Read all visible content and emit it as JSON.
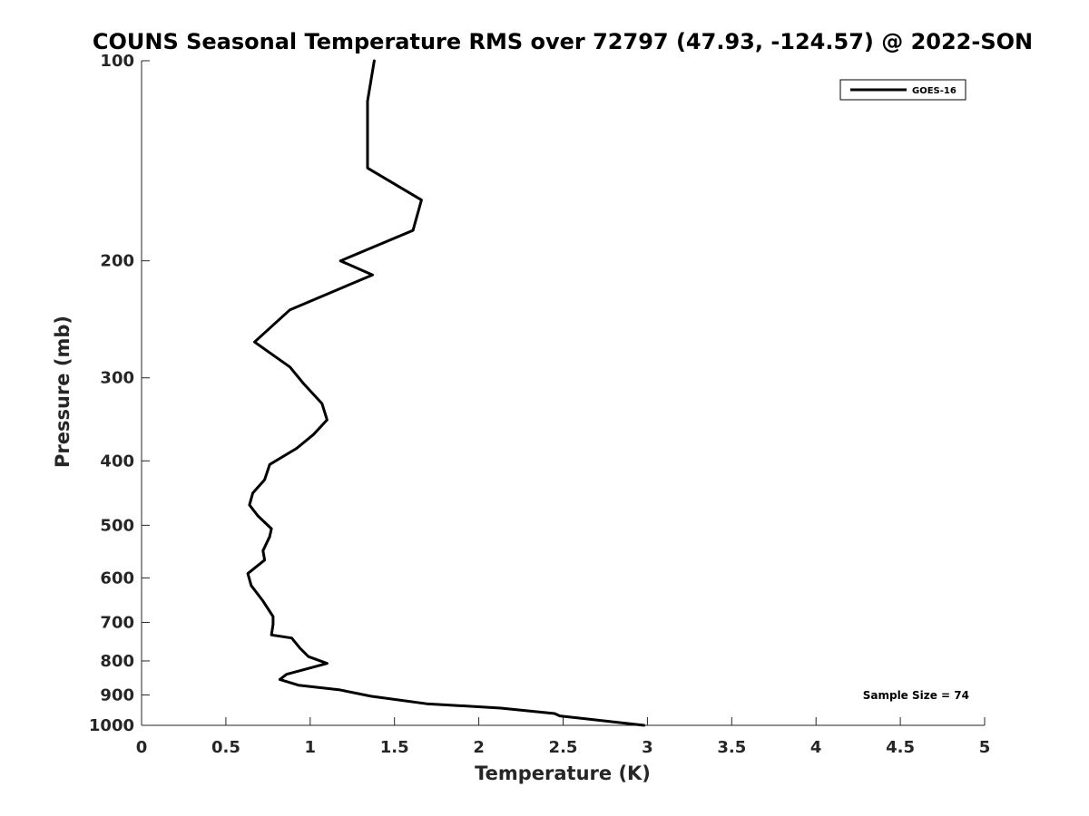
{
  "chart_data": {
    "type": "line",
    "title": "COUNS Seasonal Temperature RMS over 72797 (47.93, -124.57) @ 2022-SON",
    "xlabel": "Temperature (K)",
    "ylabel": "Pressure (mb)",
    "xlim": [
      0,
      5
    ],
    "ylim": [
      1000,
      100
    ],
    "y_scale": "log",
    "y_reversed": true,
    "x_ticks": [
      0,
      0.5,
      1,
      1.5,
      2,
      2.5,
      3,
      3.5,
      4,
      4.5,
      5
    ],
    "x_tick_labels": [
      "0",
      "0.5",
      "1",
      "1.5",
      "2",
      "2.5",
      "3",
      "3.5",
      "4",
      "4.5",
      "5"
    ],
    "y_ticks": [
      100,
      200,
      300,
      400,
      500,
      600,
      700,
      800,
      900,
      1000
    ],
    "y_tick_labels": [
      "100",
      "200",
      "300",
      "400",
      "500",
      "600",
      "700",
      "800",
      "900",
      "1000"
    ],
    "grid": false,
    "legend_position": "top-right",
    "series": [
      {
        "name": "GOES-16",
        "color": "#000000",
        "x": [
          1.38,
          1.34,
          1.34,
          1.34,
          1.66,
          1.61,
          1.18,
          1.37,
          0.88,
          0.67,
          0.88,
          0.96,
          1.07,
          1.1,
          1.02,
          0.92,
          0.76,
          0.73,
          0.66,
          0.64,
          0.69,
          0.77,
          0.76,
          0.72,
          0.73,
          0.63,
          0.65,
          0.72,
          0.78,
          0.78,
          0.77,
          0.89,
          0.94,
          0.99,
          1.1,
          0.86,
          0.82,
          0.93,
          1.17,
          1.36,
          1.69,
          2.13,
          2.45,
          2.48,
          2.98
        ],
        "y": [
          100,
          115,
          130,
          145,
          162,
          180,
          200,
          210,
          237,
          265,
          289,
          306,
          328,
          347,
          365,
          383,
          405,
          427,
          447,
          466,
          484,
          506,
          520,
          546,
          564,
          591,
          616,
          650,
          686,
          705,
          731,
          739,
          766,
          788,
          807,
          838,
          853,
          870,
          884,
          904,
          928,
          942,
          960,
          968,
          1000
        ]
      }
    ],
    "annotations": [
      "Sample Size = 74"
    ]
  }
}
